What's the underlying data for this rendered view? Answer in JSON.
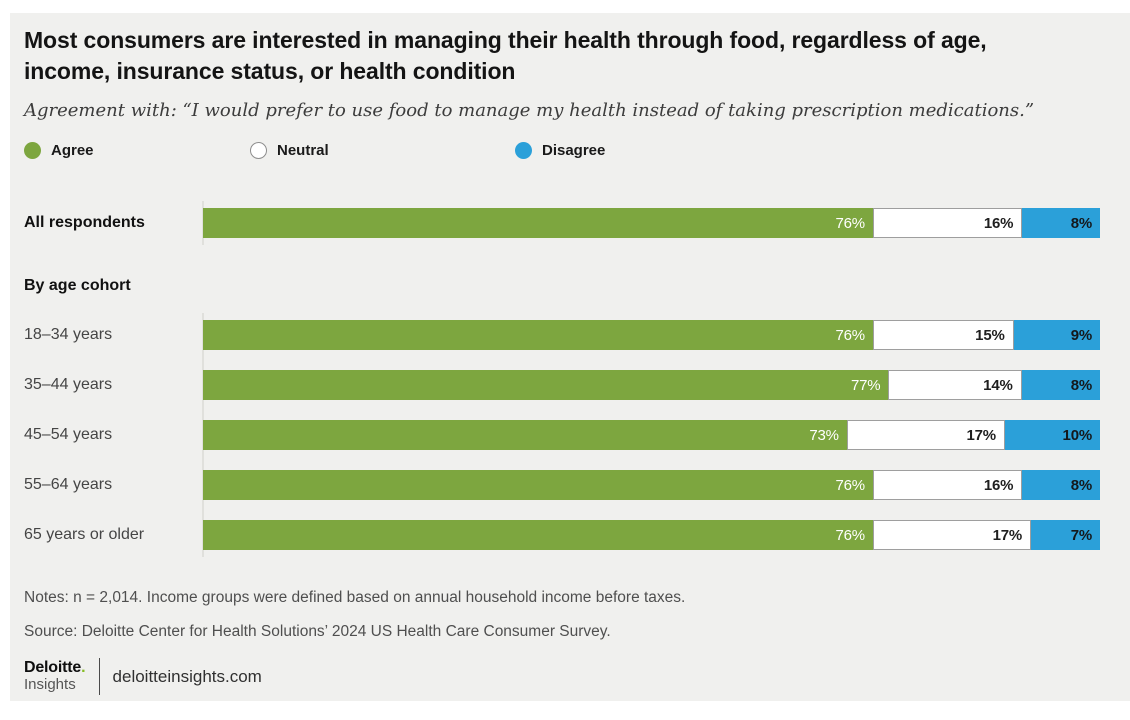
{
  "title": "Most consumers are interested in managing their health through food, regardless of age, income, insurance status, or health condition",
  "subtitle": "Agreement with: “I would prefer to use food to manage my health instead of taking prescription medications.”",
  "legend": [
    {
      "label": "Agree",
      "swatch": "agree"
    },
    {
      "label": "Neutral",
      "swatch": "neutral"
    },
    {
      "label": "Disagree",
      "swatch": "disagree"
    }
  ],
  "colors": {
    "agree": "#7da63f",
    "neutral": "#ffffff",
    "disagree": "#2ba0d9",
    "background": "#f0f0ee",
    "brand_green": "#86bc25"
  },
  "chart_data": {
    "type": "bar",
    "stacked": true,
    "orientation": "horizontal",
    "unit": "%",
    "series_names": [
      "Agree",
      "Neutral",
      "Disagree"
    ],
    "legend_position": "top",
    "xlim": [
      0,
      100
    ],
    "grid": false,
    "groups": [
      {
        "header": "",
        "rows": [
          {
            "label": "All respondents",
            "bold": true,
            "agree": 76,
            "neutral": 16,
            "disagree": 8
          }
        ]
      },
      {
        "header": "By age cohort",
        "rows": [
          {
            "label": "18–34 years",
            "bold": false,
            "agree": 76,
            "neutral": 15,
            "disagree": 9
          },
          {
            "label": "35–44 years",
            "bold": false,
            "agree": 77,
            "neutral": 14,
            "disagree": 8
          },
          {
            "label": "45–54 years",
            "bold": false,
            "agree": 73,
            "neutral": 17,
            "disagree": 10
          },
          {
            "label": "55–64 years",
            "bold": false,
            "agree": 76,
            "neutral": 16,
            "disagree": 8
          },
          {
            "label": "65 years or older",
            "bold": false,
            "agree": 76,
            "neutral": 17,
            "disagree": 7
          }
        ]
      }
    ]
  },
  "notes": "Notes: n = 2,014. Income groups were defined based on annual household income before taxes.",
  "source": "Source: Deloitte Center for Health Solutions’ 2024 US Health Care Consumer Survey.",
  "footer": {
    "brand": "Deloitte",
    "brand_dot": ".",
    "brand_sub": "Insights",
    "site": "deloitteinsights.com"
  }
}
